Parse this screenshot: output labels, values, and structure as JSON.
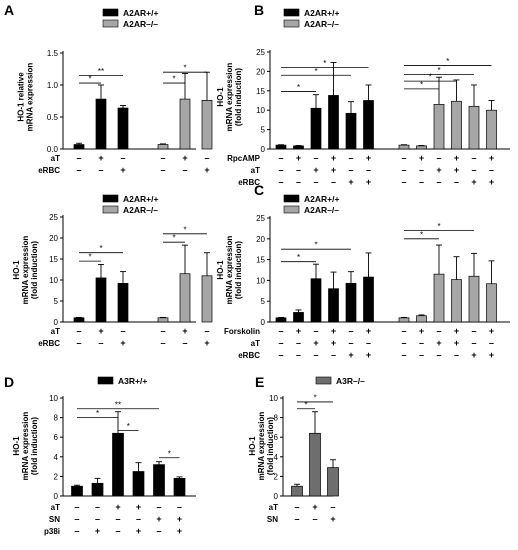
{
  "colors": {
    "black": "#000000",
    "gray": "#a6a6a6",
    "dark_gray": "#6e6e6e"
  },
  "chart_data": [
    {
      "panel": "A",
      "type": "bar",
      "ylabel": [
        "HO-1 relative",
        "mRNA expression"
      ],
      "ylim": [
        0,
        1.5
      ],
      "yticks": [
        0.0,
        0.5,
        1.0,
        1.5
      ],
      "yticklabels": [
        "0.0",
        "0.5",
        "1.0",
        "1.5"
      ],
      "legend": [
        {
          "name": "A2AR+/+",
          "color": "#000000"
        },
        {
          "name": "A2AR–/–",
          "color": "#a6a6a6"
        }
      ],
      "rows": [
        {
          "label": "aT",
          "signs": [
            "–",
            "+",
            "–",
            "–",
            "+",
            "–"
          ]
        },
        {
          "label": "eRBC",
          "signs": [
            "–",
            "–",
            "+",
            "–",
            "–",
            "+"
          ]
        }
      ],
      "bars": [
        {
          "value": 0.07,
          "error": 0.02,
          "color": "#000000"
        },
        {
          "value": 0.78,
          "error": 0.22,
          "color": "#000000"
        },
        {
          "value": 0.64,
          "error": 0.04,
          "color": "#000000"
        },
        {
          "value": 0.07,
          "error": 0.01,
          "color": "#a6a6a6"
        },
        {
          "value": 0.78,
          "error": 0.4,
          "color": "#a6a6a6"
        },
        {
          "value": 0.76,
          "error": 0.44,
          "color": "#a6a6a6"
        }
      ],
      "significance": [
        {
          "from": 0,
          "to": 1,
          "level": 1.03,
          "label": "*"
        },
        {
          "from": 0,
          "to": 2,
          "level": 1.15,
          "label": "**"
        },
        {
          "from": 3,
          "to": 4,
          "level": 1.03,
          "label": "*"
        },
        {
          "from": 3,
          "to": 5,
          "level": 1.2,
          "label": "*"
        }
      ]
    },
    {
      "panel": "B",
      "type": "bar",
      "ylabel": [
        "HO-1",
        "mRNA expression",
        "(fold induction)"
      ],
      "ylim": [
        0,
        25
      ],
      "yticks": [
        0,
        5,
        10,
        15,
        20,
        25
      ],
      "yticklabels": [
        "0",
        "5",
        "10",
        "15",
        "20",
        "25"
      ],
      "legend": [
        {
          "name": "A2AR+/+",
          "color": "#000000"
        },
        {
          "name": "A2AR–/–",
          "color": "#a6a6a6"
        }
      ],
      "rows": [
        {
          "label": "RpcAMP",
          "signs": [
            "–",
            "+",
            "–",
            "+",
            "–",
            "+",
            "–",
            "+",
            "–",
            "+",
            "–",
            "+"
          ]
        },
        {
          "label": "aT",
          "signs": [
            "–",
            "–",
            "+",
            "+",
            "–",
            "–",
            "–",
            "–",
            "+",
            "+",
            "–",
            "–"
          ]
        },
        {
          "label": "eRBC",
          "signs": [
            "–",
            "–",
            "–",
            "–",
            "+",
            "+",
            "–",
            "–",
            "–",
            "–",
            "+",
            "+"
          ]
        }
      ],
      "bars": [
        {
          "value": 1.0,
          "error": 0.1,
          "color": "#000000"
        },
        {
          "value": 0.8,
          "error": 0.1,
          "color": "#000000"
        },
        {
          "value": 10.5,
          "error": 3.5,
          "color": "#000000"
        },
        {
          "value": 13.8,
          "error": 8.5,
          "color": "#000000"
        },
        {
          "value": 9.2,
          "error": 3.0,
          "color": "#000000"
        },
        {
          "value": 12.5,
          "error": 4.0,
          "color": "#000000"
        },
        {
          "value": 1.0,
          "error": 0.1,
          "color": "#a6a6a6"
        },
        {
          "value": 0.8,
          "error": 0.1,
          "color": "#a6a6a6"
        },
        {
          "value": 11.5,
          "error": 7.0,
          "color": "#a6a6a6"
        },
        {
          "value": 12.3,
          "error": 5.5,
          "color": "#a6a6a6"
        },
        {
          "value": 11.0,
          "error": 5.5,
          "color": "#a6a6a6"
        },
        {
          "value": 10.0,
          "error": 2.5,
          "color": "#a6a6a6"
        }
      ],
      "significance": [
        {
          "from": 0,
          "to": 2,
          "level": 14.8,
          "label": "*"
        },
        {
          "from": 0,
          "to": 4,
          "level": 19.0,
          "label": "*"
        },
        {
          "from": 0,
          "to": 5,
          "level": 21.0,
          "label": "*"
        },
        {
          "from": 6,
          "to": 8,
          "level": 15.5,
          "label": "*"
        },
        {
          "from": 6,
          "to": 9,
          "level": 17.5,
          "label": "*"
        },
        {
          "from": 6,
          "to": 10,
          "level": 19.2,
          "label": "*"
        },
        {
          "from": 6,
          "to": 11,
          "level": 21.5,
          "label": "*"
        }
      ]
    },
    {
      "panel": "A (lower)",
      "type": "bar",
      "ylabel": [
        "HO-1",
        "mRNA expression",
        "(fold induction)"
      ],
      "ylim": [
        0,
        25
      ],
      "yticks": [
        0,
        5,
        10,
        15,
        20,
        25
      ],
      "yticklabels": [
        "0",
        "5",
        "10",
        "15",
        "20",
        "25"
      ],
      "legend": [
        {
          "name": "A2AR+/+",
          "color": "#000000"
        },
        {
          "name": "A2AR–/–",
          "color": "#a6a6a6"
        }
      ],
      "rows": [
        {
          "label": "aT",
          "signs": [
            "–",
            "+",
            "–",
            "–",
            "+",
            "–"
          ]
        },
        {
          "label": "eRBC",
          "signs": [
            "–",
            "–",
            "+",
            "–",
            "–",
            "+"
          ]
        }
      ],
      "bars": [
        {
          "value": 1.0,
          "error": 0.1,
          "color": "#000000"
        },
        {
          "value": 10.5,
          "error": 3.2,
          "color": "#000000"
        },
        {
          "value": 9.2,
          "error": 2.8,
          "color": "#000000"
        },
        {
          "value": 1.0,
          "error": 0.1,
          "color": "#a6a6a6"
        },
        {
          "value": 11.5,
          "error": 6.8,
          "color": "#a6a6a6"
        },
        {
          "value": 11.0,
          "error": 5.5,
          "color": "#a6a6a6"
        }
      ],
      "significance": [
        {
          "from": 0,
          "to": 1,
          "level": 14.5,
          "label": "*"
        },
        {
          "from": 0,
          "to": 2,
          "level": 16.5,
          "label": "*"
        },
        {
          "from": 3,
          "to": 4,
          "level": 19.0,
          "label": "*"
        },
        {
          "from": 3,
          "to": 5,
          "level": 21.0,
          "label": "*"
        }
      ]
    },
    {
      "panel": "C",
      "type": "bar",
      "ylabel": [
        "HO-1",
        "mRNA expression",
        "(fold induction)"
      ],
      "ylim": [
        0,
        25
      ],
      "yticks": [
        0,
        5,
        10,
        15,
        20,
        25
      ],
      "yticklabels": [
        "0",
        "5",
        "10",
        "15",
        "20",
        "25"
      ],
      "legend": [
        {
          "name": "A2AR+/+",
          "color": "#000000"
        },
        {
          "name": "A2AR–/–",
          "color": "#a6a6a6"
        }
      ],
      "rows": [
        {
          "label": "Forskolin",
          "signs": [
            "–",
            "+",
            "–",
            "+",
            "–",
            "+",
            "–",
            "+",
            "–",
            "+",
            "–",
            "+"
          ]
        },
        {
          "label": "aT",
          "signs": [
            "–",
            "–",
            "+",
            "+",
            "–",
            "–",
            "–",
            "–",
            "+",
            "+",
            "–",
            "–"
          ]
        },
        {
          "label": "eRBC",
          "signs": [
            "–",
            "–",
            "–",
            "–",
            "+",
            "+",
            "–",
            "–",
            "–",
            "–",
            "+",
            "+"
          ]
        }
      ],
      "bars": [
        {
          "value": 1.0,
          "error": 0.1,
          "color": "#000000"
        },
        {
          "value": 2.3,
          "error": 0.6,
          "color": "#000000"
        },
        {
          "value": 10.4,
          "error": 3.5,
          "color": "#000000"
        },
        {
          "value": 8.0,
          "error": 4.0,
          "color": "#000000"
        },
        {
          "value": 9.3,
          "error": 2.8,
          "color": "#000000"
        },
        {
          "value": 10.8,
          "error": 5.8,
          "color": "#000000"
        },
        {
          "value": 1.0,
          "error": 0.1,
          "color": "#a6a6a6"
        },
        {
          "value": 1.5,
          "error": 0.2,
          "color": "#a6a6a6"
        },
        {
          "value": 11.5,
          "error": 7.0,
          "color": "#a6a6a6"
        },
        {
          "value": 10.2,
          "error": 5.5,
          "color": "#a6a6a6"
        },
        {
          "value": 11.0,
          "error": 5.5,
          "color": "#a6a6a6"
        },
        {
          "value": 9.2,
          "error": 5.5,
          "color": "#a6a6a6"
        }
      ],
      "significance": [
        {
          "from": 0,
          "to": 2,
          "level": 14.5,
          "label": "*"
        },
        {
          "from": 0,
          "to": 4,
          "level": 17.5,
          "label": "*"
        },
        {
          "from": 6,
          "to": 8,
          "level": 20.0,
          "label": "*"
        },
        {
          "from": 6,
          "to": 10,
          "level": 22.0,
          "label": "*"
        }
      ]
    },
    {
      "panel": "D",
      "type": "bar",
      "ylabel": [
        "HO-1",
        "mRNA expression",
        "(fold induction)"
      ],
      "ylim": [
        0,
        10
      ],
      "yticks": [
        0,
        2,
        4,
        6,
        8,
        10
      ],
      "yticklabels": [
        "0",
        "2",
        "4",
        "6",
        "8",
        "10"
      ],
      "legend": [
        {
          "name": "A3R+/+",
          "color": "#000000"
        }
      ],
      "rows": [
        {
          "label": "aT",
          "signs": [
            "–",
            "–",
            "+",
            "+",
            "–",
            "–"
          ]
        },
        {
          "label": "SN",
          "signs": [
            "–",
            "–",
            "–",
            "–",
            "+",
            "+"
          ]
        },
        {
          "label": "p38i",
          "signs": [
            "–",
            "+",
            "–",
            "+",
            "–",
            "+"
          ]
        }
      ],
      "bars": [
        {
          "value": 1.0,
          "error": 0.1,
          "color": "#000000"
        },
        {
          "value": 1.3,
          "error": 0.5,
          "color": "#000000"
        },
        {
          "value": 6.4,
          "error": 2.2,
          "color": "#000000"
        },
        {
          "value": 2.5,
          "error": 0.9,
          "color": "#000000"
        },
        {
          "value": 3.2,
          "error": 0.3,
          "color": "#000000"
        },
        {
          "value": 1.8,
          "error": 0.15,
          "color": "#000000"
        }
      ],
      "significance": [
        {
          "from": 0,
          "to": 2,
          "level": 8.0,
          "label": "*"
        },
        {
          "from": 0,
          "to": 4,
          "level": 8.9,
          "label": "**"
        },
        {
          "from": 2,
          "to": 3,
          "level": 6.7,
          "label": "*"
        },
        {
          "from": 4,
          "to": 5,
          "level": 3.9,
          "label": "*"
        }
      ]
    },
    {
      "panel": "E",
      "type": "bar",
      "ylabel": [
        "HO-1",
        "mRNA expression",
        "(fold induction)"
      ],
      "ylim": [
        0,
        10
      ],
      "yticks": [
        0,
        2,
        4,
        6,
        8,
        10
      ],
      "yticklabels": [
        "0",
        "2",
        "4",
        "6",
        "8",
        "10"
      ],
      "legend": [
        {
          "name": "A3R–/–",
          "color": "#6e6e6e"
        }
      ],
      "rows": [
        {
          "label": "aT",
          "signs": [
            "–",
            "+",
            "–"
          ]
        },
        {
          "label": "SN",
          "signs": [
            "–",
            "–",
            "+"
          ]
        }
      ],
      "bars": [
        {
          "value": 1.0,
          "error": 0.2,
          "color": "#6e6e6e"
        },
        {
          "value": 6.4,
          "error": 2.2,
          "color": "#6e6e6e"
        },
        {
          "value": 2.9,
          "error": 0.8,
          "color": "#6e6e6e"
        }
      ],
      "significance": [
        {
          "from": 0,
          "to": 1,
          "level": 8.9,
          "label": "*"
        },
        {
          "from": 0,
          "to": 2,
          "level": 9.6,
          "label": "*"
        }
      ]
    }
  ]
}
